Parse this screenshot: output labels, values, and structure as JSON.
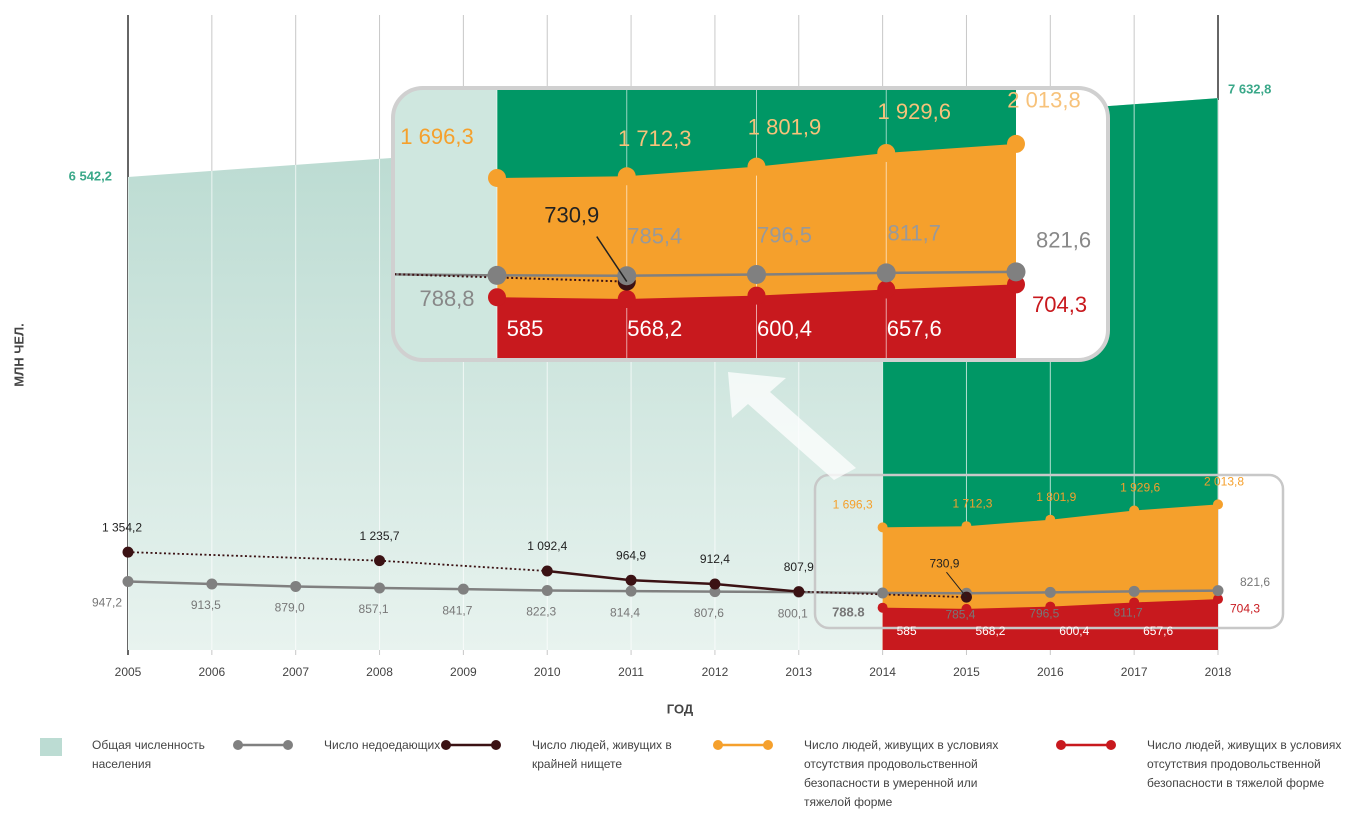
{
  "chart_data": {
    "type": "line",
    "x_label": "ГОД",
    "y_label": "МЛН ЧЕЛ.",
    "x": [
      2005,
      2006,
      2007,
      2008,
      2009,
      2010,
      2011,
      2012,
      2013,
      2014,
      2015,
      2016,
      2017,
      2018
    ],
    "xlim": [
      2005,
      2018
    ],
    "xticks": [
      2005,
      2006,
      2007,
      2008,
      2009,
      2010,
      2011,
      2012,
      2013,
      2014,
      2015,
      2016,
      2017,
      2018
    ],
    "series": [
      {
        "name": "Общая численность населения",
        "kind": "area",
        "color": "#bcdcd3",
        "x": [
          2005,
          2018
        ],
        "values": [
          6542.2,
          7632.8
        ],
        "value_labels": [
          "6 542,2",
          "7 632,8"
        ]
      },
      {
        "name": "Число недоедающих",
        "color": "#808080",
        "values": [
          947.2,
          913.5,
          879.0,
          857.1,
          841.7,
          822.3,
          814.4,
          807.6,
          800.1,
          788.8,
          785.4,
          796.5,
          811.7,
          821.6
        ],
        "value_labels": [
          "947,2",
          "913,5",
          "879,0",
          "857,1",
          "841,7",
          "822,3",
          "814,4",
          "807,6",
          "800,1",
          "788.8",
          "785,4",
          "796,5",
          "811,7",
          "821,6"
        ],
        "inset_value_label": "788,8"
      },
      {
        "name": "Число людей, живущих в крайней нищете",
        "color": "#3b1214",
        "x": [
          2005,
          2008,
          2010,
          2011,
          2012,
          2013,
          2015
        ],
        "values": [
          1354.2,
          1235.7,
          1092.4,
          964.9,
          912.4,
          807.9,
          730.9
        ],
        "value_labels": [
          "1 354,2",
          "1 235,7",
          "1 092,4",
          "964,9",
          "912,4",
          "807,9",
          "730,9"
        ]
      },
      {
        "name": "Число людей, живущих в условиях отсутствия продовольственной безопасности в умеренной или тяжелой форме",
        "kind": "area",
        "color": "#f5a02c",
        "x": [
          2014,
          2015,
          2016,
          2017,
          2018
        ],
        "values": [
          1696.3,
          1712.3,
          1801.9,
          1929.6,
          2013.8
        ],
        "value_labels": [
          "1 696,3",
          "1 712,3",
          "1 801,9",
          "1 929,6",
          "2 013,8"
        ]
      },
      {
        "name": "Число людей, живущих в условиях отсутствия продовольственной безопасности в тяжелой форме",
        "kind": "area",
        "color": "#c8191e",
        "x": [
          2014,
          2015,
          2016,
          2017,
          2018
        ],
        "values": [
          585,
          568.2,
          600.4,
          657.6,
          704.3
        ],
        "value_labels": [
          "585",
          "568,2",
          "600,4",
          "657,6",
          "704,3"
        ]
      }
    ]
  }
}
